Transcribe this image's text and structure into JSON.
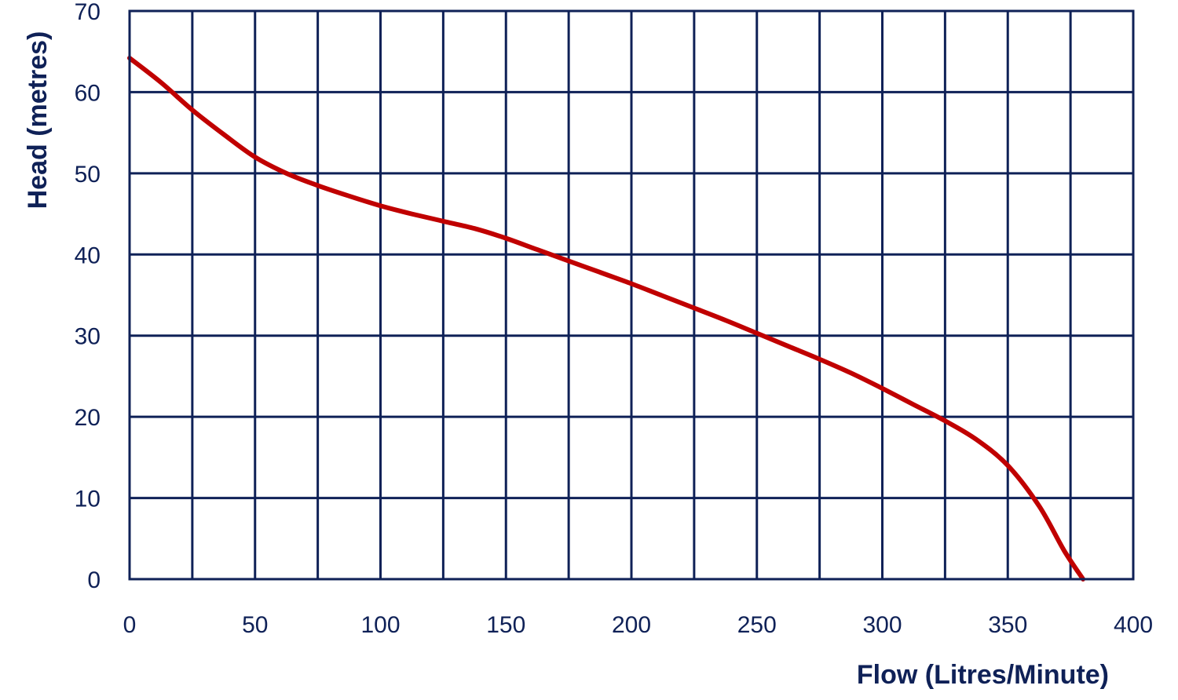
{
  "chart_data": {
    "type": "line",
    "title": "",
    "xlabel": "Flow (Litres/Minute)",
    "ylabel": "Head (metres)",
    "xlim": [
      0,
      400
    ],
    "ylim": [
      0,
      70
    ],
    "x_ticks": [
      "0",
      "50",
      "100",
      "150",
      "200",
      "250",
      "300",
      "350",
      "400"
    ],
    "y_ticks": [
      "0",
      "10",
      "20",
      "30",
      "40",
      "50",
      "60",
      "70"
    ],
    "x_grid_step": 25,
    "y_grid_step": 10,
    "grid": true,
    "series": [
      {
        "color": "#c00000",
        "points": [
          [
            0,
            64.2
          ],
          [
            12.5,
            61.2
          ],
          [
            25,
            57.8
          ],
          [
            37.5,
            54.8
          ],
          [
            50,
            52.0
          ],
          [
            62.5,
            50.0
          ],
          [
            75,
            48.5
          ],
          [
            87.5,
            47.2
          ],
          [
            100,
            46.0
          ],
          [
            112.5,
            45.0
          ],
          [
            125,
            44.1
          ],
          [
            137.5,
            43.2
          ],
          [
            150,
            42.0
          ],
          [
            162.5,
            40.6
          ],
          [
            175,
            39.2
          ],
          [
            187.5,
            37.8
          ],
          [
            200,
            36.4
          ],
          [
            212.5,
            34.9
          ],
          [
            225,
            33.4
          ],
          [
            237.5,
            31.9
          ],
          [
            250,
            30.3
          ],
          [
            262.5,
            28.7
          ],
          [
            275,
            27.1
          ],
          [
            287.5,
            25.4
          ],
          [
            300,
            23.5
          ],
          [
            312.5,
            21.5
          ],
          [
            325,
            19.5
          ],
          [
            337.5,
            17.2
          ],
          [
            350,
            14.0
          ],
          [
            362.5,
            9.0
          ],
          [
            372.5,
            3.5
          ],
          [
            380,
            0
          ]
        ]
      }
    ]
  },
  "colors": {
    "axis": "#0f2157",
    "grid": "#0f2157",
    "series": "#c00000"
  }
}
